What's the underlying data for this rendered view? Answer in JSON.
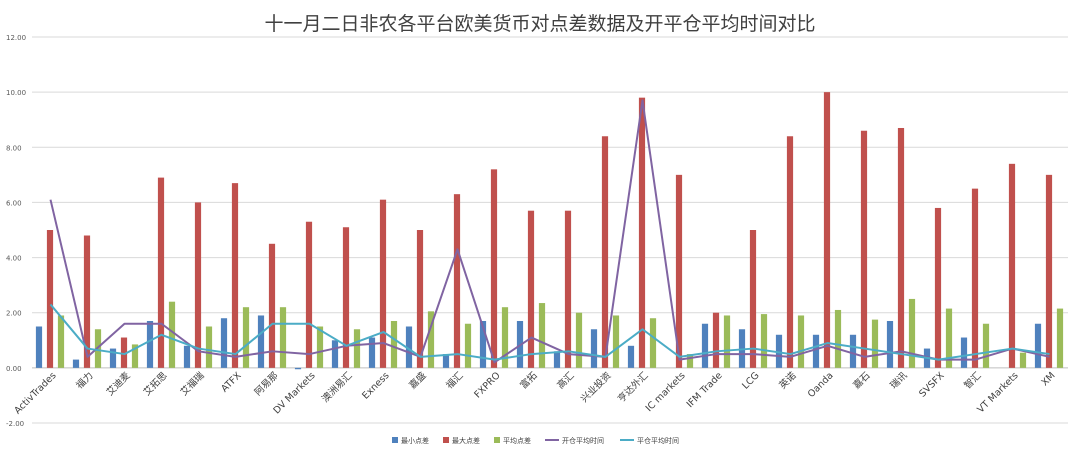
{
  "chart_data": {
    "type": "bar",
    "title": "十一月二日非农各平台欧美货币对点差数据及开平仓平均时间对比",
    "xlabel": "",
    "ylabel": "",
    "ylim": [
      -2,
      12
    ],
    "yticks": [
      "-2.00",
      "0.00",
      "2.00",
      "4.00",
      "6.00",
      "8.00",
      "10.00",
      "12.00"
    ],
    "grid": true,
    "legend_position": "bottom",
    "categories": [
      "ActivTrades",
      "福力",
      "艾迪麦",
      "艾拓思",
      "艾福瑞",
      "ATFX",
      "阿易那",
      "DV Markets",
      "澳洲易汇",
      "Exness",
      "嘉盛",
      "福汇",
      "FXPRO",
      "富拓",
      "高汇",
      "兴业投资",
      "亨达外汇",
      "IC markets",
      "IFM Trade",
      "LCG",
      "英诺",
      "Oanda",
      "嘉石",
      "瑞讯",
      "SVSFX",
      "智汇",
      "VT Markets",
      "XM"
    ],
    "series": [
      {
        "name": "最小点差",
        "type": "bar",
        "color": "#4f81bd",
        "values": [
          1.5,
          0.3,
          0.7,
          1.7,
          0.8,
          1.8,
          1.9,
          -0.05,
          1.0,
          1.1,
          1.5,
          0.5,
          1.7,
          1.7,
          0.6,
          1.4,
          0.8,
          0.0,
          1.6,
          1.4,
          1.2,
          1.2,
          1.2,
          1.7,
          0.7,
          1.1,
          0.0,
          1.6
        ]
      },
      {
        "name": "最大点差",
        "type": "bar",
        "color": "#c0504d",
        "values": [
          5.0,
          4.8,
          1.1,
          6.9,
          6.0,
          6.7,
          4.5,
          5.3,
          5.1,
          6.1,
          5.0,
          6.3,
          7.2,
          5.7,
          5.7,
          8.4,
          9.8,
          7.0,
          2.0,
          5.0,
          8.4,
          10.0,
          8.6,
          8.7,
          5.8,
          6.5,
          7.4,
          7.0
        ]
      },
      {
        "name": "平均点差",
        "type": "bar",
        "color": "#9bbb59",
        "values": [
          1.9,
          1.4,
          0.85,
          2.4,
          1.5,
          2.2,
          2.2,
          1.5,
          1.4,
          1.7,
          2.05,
          1.6,
          2.2,
          2.35,
          2.0,
          1.9,
          1.8,
          0.5,
          1.9,
          1.95,
          1.9,
          2.1,
          1.75,
          2.5,
          2.15,
          1.6,
          0.55,
          2.15
        ]
      },
      {
        "name": "开仓平均时间",
        "type": "line",
        "color": "#8064a2",
        "values": [
          6.1,
          0.4,
          1.6,
          1.6,
          0.6,
          0.4,
          0.6,
          0.5,
          0.8,
          0.9,
          0.4,
          4.3,
          0.2,
          1.1,
          0.5,
          0.4,
          9.7,
          0.3,
          0.5,
          0.5,
          0.4,
          0.8,
          0.4,
          0.6,
          0.3,
          0.3,
          0.7,
          0.4
        ]
      },
      {
        "name": "平仓平均时间",
        "type": "line",
        "color": "#4bacc6",
        "values": [
          2.3,
          0.7,
          0.5,
          1.2,
          0.7,
          0.5,
          1.6,
          1.6,
          0.8,
          1.3,
          0.4,
          0.5,
          0.3,
          0.5,
          0.6,
          0.4,
          1.4,
          0.4,
          0.6,
          0.7,
          0.5,
          0.9,
          0.7,
          0.5,
          0.3,
          0.5,
          0.7,
          0.5
        ]
      }
    ]
  }
}
